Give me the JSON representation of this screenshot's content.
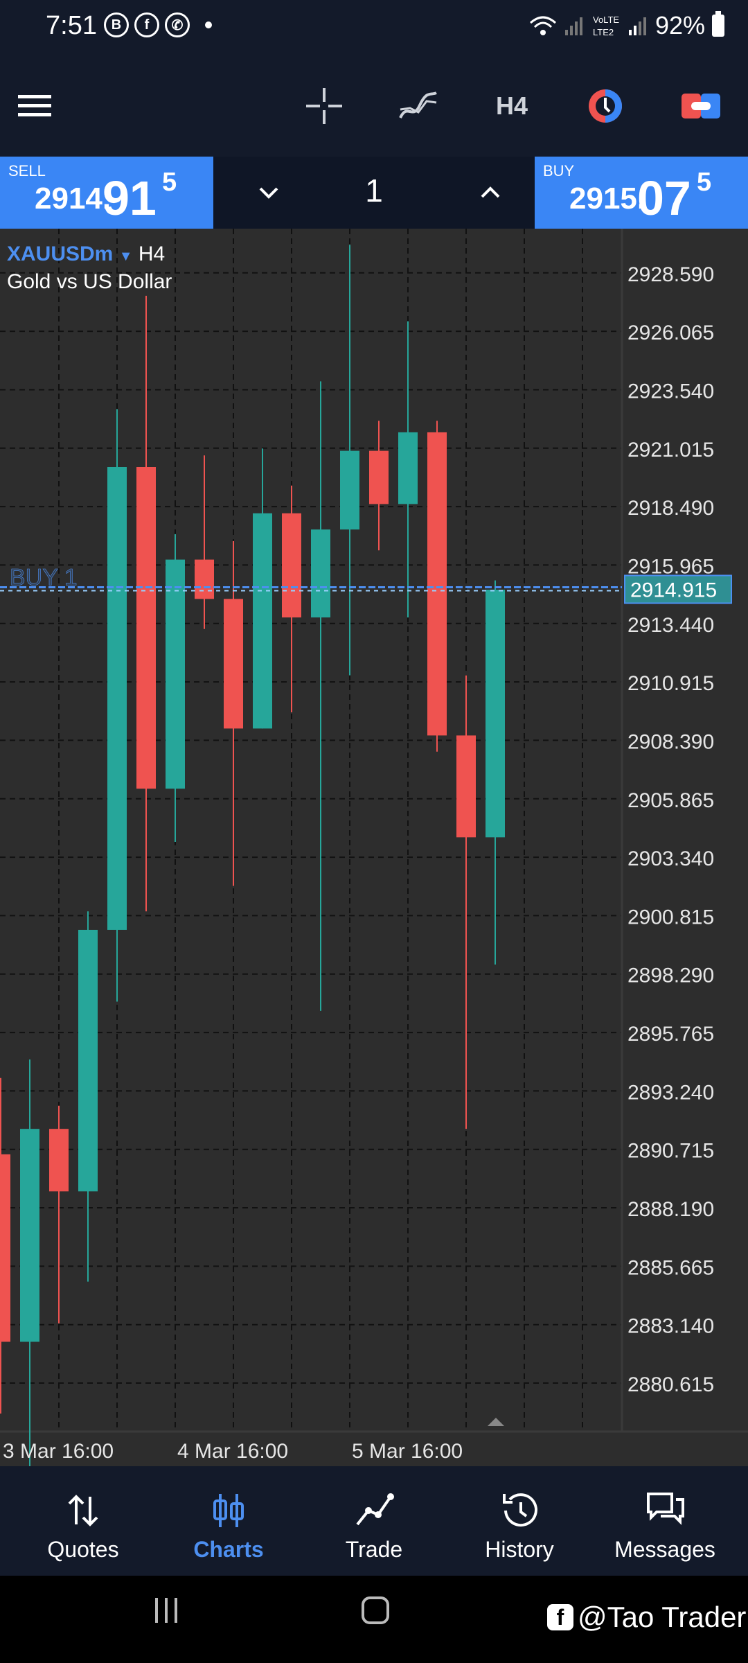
{
  "status_bar": {
    "time": "7:51",
    "notif_icons": [
      "b-icon",
      "facebook-icon",
      "whatsapp-icon"
    ],
    "battery": "92%"
  },
  "toolbar": {
    "timeframe": "H4"
  },
  "trade": {
    "sell": {
      "label": "SELL",
      "price_small": "2914.",
      "price_big": "91",
      "price_sup": "5"
    },
    "buy": {
      "label": "BUY",
      "price_small": "2915.",
      "price_big": "07",
      "price_sup": "5"
    },
    "lot": "1"
  },
  "chart": {
    "symbol": "XAUUSDm",
    "timeframe": "H4",
    "description": "Gold vs US Dollar",
    "order_label": "BUY 1",
    "current_price": "2914.915",
    "price_ticks": [
      "2928.590",
      "2926.065",
      "2923.540",
      "2921.015",
      "2918.490",
      "2915.965",
      "2913.440",
      "2910.915",
      "2908.390",
      "2905.865",
      "2903.340",
      "2900.815",
      "2898.290",
      "2895.765",
      "2893.240",
      "2890.715",
      "2888.190",
      "2885.665",
      "2883.140",
      "2880.615"
    ],
    "time_labels": [
      "3 Mar 16:00",
      "4 Mar 16:00",
      "5 Mar 16:00"
    ],
    "colors": {
      "bull": "#26a69a",
      "bear": "#ef5350",
      "background": "#2d2d2d",
      "accent": "#4d8ff0"
    }
  },
  "chart_data": {
    "type": "candlestick",
    "y_range": [
      2878.7,
      2930.5
    ],
    "price_line": 2914.915,
    "candles": [
      {
        "open": 2890.5,
        "high": 2893.8,
        "low": 2879.3,
        "close": 2882.4
      },
      {
        "open": 2882.4,
        "high": 2894.6,
        "low": 2876.3,
        "close": 2891.6
      },
      {
        "open": 2891.6,
        "high": 2892.6,
        "low": 2883.2,
        "close": 2888.9
      },
      {
        "open": 2888.9,
        "high": 2901.0,
        "low": 2885.0,
        "close": 2900.2
      },
      {
        "open": 2900.2,
        "high": 2922.7,
        "low": 2897.1,
        "close": 2920.2
      },
      {
        "open": 2920.2,
        "high": 2927.6,
        "low": 2901.0,
        "close": 2906.3
      },
      {
        "open": 2906.3,
        "high": 2917.3,
        "low": 2904.0,
        "close": 2916.2
      },
      {
        "open": 2916.2,
        "high": 2920.7,
        "low": 2913.2,
        "close": 2914.5
      },
      {
        "open": 2914.5,
        "high": 2917.0,
        "low": 2902.1,
        "close": 2908.9
      },
      {
        "open": 2908.9,
        "high": 2921.0,
        "low": 2908.9,
        "close": 2918.2
      },
      {
        "open": 2918.2,
        "high": 2919.4,
        "low": 2909.6,
        "close": 2913.7
      },
      {
        "open": 2913.7,
        "high": 2923.9,
        "low": 2896.7,
        "close": 2917.5
      },
      {
        "open": 2917.5,
        "high": 2929.8,
        "low": 2911.2,
        "close": 2920.9
      },
      {
        "open": 2920.9,
        "high": 2922.2,
        "low": 2916.6,
        "close": 2918.6
      },
      {
        "open": 2918.6,
        "high": 2926.5,
        "low": 2913.7,
        "close": 2921.7
      },
      {
        "open": 2921.7,
        "high": 2922.2,
        "low": 2907.9,
        "close": 2908.6
      },
      {
        "open": 2908.6,
        "high": 2911.2,
        "low": 2891.6,
        "close": 2904.2
      },
      {
        "open": 2904.2,
        "high": 2915.3,
        "low": 2898.7,
        "close": 2914.9
      }
    ]
  },
  "nav": [
    {
      "label": "Quotes",
      "icon": "quotes-icon"
    },
    {
      "label": "Charts",
      "icon": "charts-icon"
    },
    {
      "label": "Trade",
      "icon": "trade-icon"
    },
    {
      "label": "History",
      "icon": "history-icon"
    },
    {
      "label": "Messages",
      "icon": "messages-icon"
    }
  ],
  "watermark": "@Tao Trader"
}
